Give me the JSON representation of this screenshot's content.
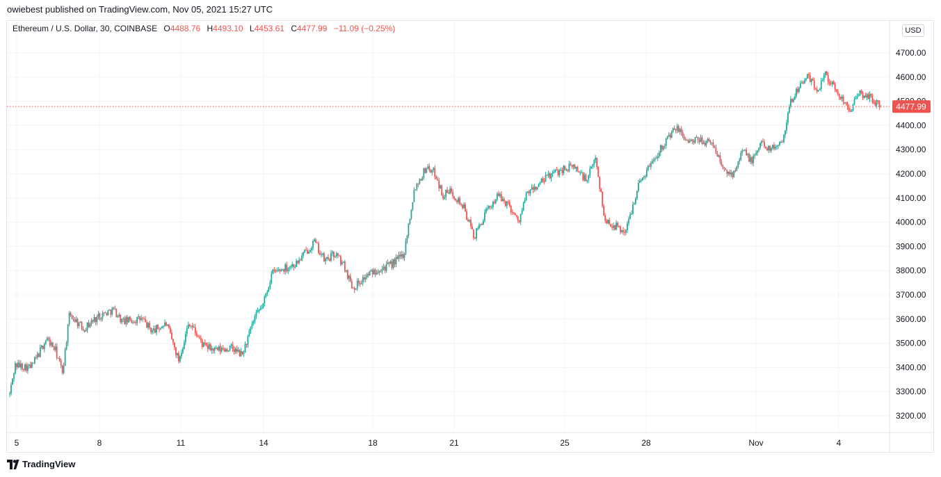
{
  "header": {
    "published_text": "owiebest published on TradingView.com, Nov 05, 2021 15:27 UTC"
  },
  "legend": {
    "symbol_text": "Ethereum / U.S. Dollar, 30, COINBASE",
    "open_label": "O",
    "open_value": "4488.76",
    "high_label": "H",
    "high_value": "4493.10",
    "low_label": "L",
    "low_value": "4453.61",
    "close_label": "C",
    "close_value": "4477.99",
    "change_text": "−11.09 (−0.25%)"
  },
  "price_axis": {
    "unit_label": "USD",
    "last_price_label": "4477.99"
  },
  "footer": {
    "brand": "TradingView"
  },
  "colors": {
    "up": "#26a69a",
    "down": "#ef5350",
    "grid": "#f0f3fa",
    "text": "#131722"
  },
  "chart_data": {
    "type": "candlestick",
    "symbol": "Ethereum / U.S. Dollar",
    "interval": "30",
    "exchange": "COINBASE",
    "y_ticks": [
      "3200.00",
      "3300.00",
      "3400.00",
      "3500.00",
      "3600.00",
      "3700.00",
      "3800.00",
      "3900.00",
      "4000.00",
      "4100.00",
      "4200.00",
      "4300.00",
      "4400.00",
      "4500.00",
      "4600.00",
      "4700.00"
    ],
    "ylim": [
      3150,
      4810
    ],
    "x_ticks": [
      "5",
      "8",
      "11",
      "14",
      "18",
      "21",
      "25",
      "28",
      "Nov",
      "4"
    ],
    "last_price": 4477.99,
    "price_path": [
      {
        "t": 0.0,
        "p": 3290
      },
      {
        "t": 0.3,
        "p": 3410
      },
      {
        "t": 1.2,
        "p": 3400
      },
      {
        "t": 1.6,
        "p": 3450
      },
      {
        "t": 2.1,
        "p": 3520
      },
      {
        "t": 2.6,
        "p": 3470
      },
      {
        "t": 3.0,
        "p": 3380
      },
      {
        "t": 3.4,
        "p": 3620
      },
      {
        "t": 4.2,
        "p": 3560
      },
      {
        "t": 5.0,
        "p": 3610
      },
      {
        "t": 5.9,
        "p": 3640
      },
      {
        "t": 6.4,
        "p": 3590
      },
      {
        "t": 7.5,
        "p": 3600
      },
      {
        "t": 8.1,
        "p": 3550
      },
      {
        "t": 8.9,
        "p": 3580
      },
      {
        "t": 9.6,
        "p": 3430
      },
      {
        "t": 10.2,
        "p": 3590
      },
      {
        "t": 11.0,
        "p": 3490
      },
      {
        "t": 11.7,
        "p": 3470
      },
      {
        "t": 12.6,
        "p": 3480
      },
      {
        "t": 13.2,
        "p": 3450
      },
      {
        "t": 13.9,
        "p": 3600
      },
      {
        "t": 14.4,
        "p": 3660
      },
      {
        "t": 14.9,
        "p": 3790
      },
      {
        "t": 15.6,
        "p": 3810
      },
      {
        "t": 16.3,
        "p": 3830
      },
      {
        "t": 17.3,
        "p": 3920
      },
      {
        "t": 17.9,
        "p": 3840
      },
      {
        "t": 18.5,
        "p": 3870
      },
      {
        "t": 19.0,
        "p": 3820
      },
      {
        "t": 19.5,
        "p": 3730
      },
      {
        "t": 20.3,
        "p": 3780
      },
      {
        "t": 21.0,
        "p": 3810
      },
      {
        "t": 21.6,
        "p": 3820
      },
      {
        "t": 22.4,
        "p": 3870
      },
      {
        "t": 23.0,
        "p": 4140
      },
      {
        "t": 23.7,
        "p": 4230
      },
      {
        "t": 24.2,
        "p": 4200
      },
      {
        "t": 24.6,
        "p": 4110
      },
      {
        "t": 25.1,
        "p": 4130
      },
      {
        "t": 25.8,
        "p": 4060
      },
      {
        "t": 26.4,
        "p": 3940
      },
      {
        "t": 27.0,
        "p": 4030
      },
      {
        "t": 27.7,
        "p": 4110
      },
      {
        "t": 28.4,
        "p": 4070
      },
      {
        "t": 28.9,
        "p": 4000
      },
      {
        "t": 29.4,
        "p": 4120
      },
      {
        "t": 30.0,
        "p": 4150
      },
      {
        "t": 30.6,
        "p": 4190
      },
      {
        "t": 31.4,
        "p": 4220
      },
      {
        "t": 32.1,
        "p": 4230
      },
      {
        "t": 32.8,
        "p": 4170
      },
      {
        "t": 33.3,
        "p": 4270
      },
      {
        "t": 33.8,
        "p": 4010
      },
      {
        "t": 34.5,
        "p": 3980
      },
      {
        "t": 35.0,
        "p": 3960
      },
      {
        "t": 35.7,
        "p": 4150
      },
      {
        "t": 36.4,
        "p": 4240
      },
      {
        "t": 37.2,
        "p": 4330
      },
      {
        "t": 37.9,
        "p": 4390
      },
      {
        "t": 38.6,
        "p": 4330
      },
      {
        "t": 39.3,
        "p": 4340
      },
      {
        "t": 40.0,
        "p": 4320
      },
      {
        "t": 40.6,
        "p": 4210
      },
      {
        "t": 41.1,
        "p": 4200
      },
      {
        "t": 41.6,
        "p": 4300
      },
      {
        "t": 42.2,
        "p": 4250
      },
      {
        "t": 42.7,
        "p": 4330
      },
      {
        "t": 43.3,
        "p": 4300
      },
      {
        "t": 43.9,
        "p": 4340
      },
      {
        "t": 44.4,
        "p": 4500
      },
      {
        "t": 44.9,
        "p": 4570
      },
      {
        "t": 45.4,
        "p": 4600
      },
      {
        "t": 45.9,
        "p": 4540
      },
      {
        "t": 46.3,
        "p": 4620
      },
      {
        "t": 46.8,
        "p": 4560
      },
      {
        "t": 47.3,
        "p": 4510
      },
      {
        "t": 47.8,
        "p": 4470
      },
      {
        "t": 48.3,
        "p": 4530
      },
      {
        "t": 48.8,
        "p": 4520
      },
      {
        "t": 49.5,
        "p": 4478
      }
    ]
  }
}
